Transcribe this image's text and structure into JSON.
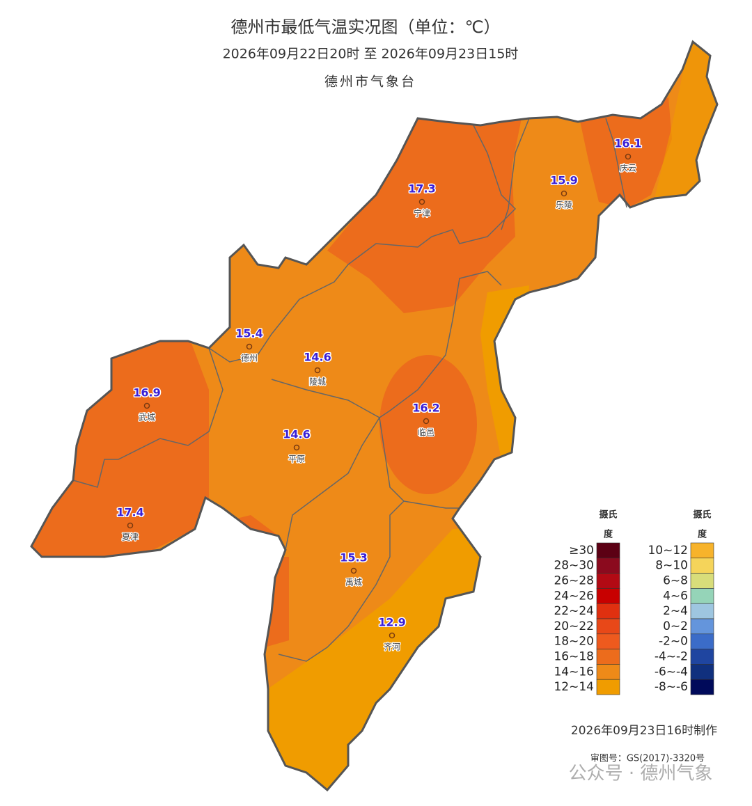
{
  "header": {
    "title": "德州市最低气温实况图（单位：℃）",
    "period": "2026年09月22日20时  至  2026年09月23日15时",
    "issuer": "德州市气象台"
  },
  "stations": [
    {
      "name": "庆云",
      "value": "16.1"
    },
    {
      "name": "宁津",
      "value": "17.3"
    },
    {
      "name": "乐陵",
      "value": "15.9"
    },
    {
      "name": "德州",
      "value": "15.4"
    },
    {
      "name": "陵城",
      "value": "14.6"
    },
    {
      "name": "武城",
      "value": "16.9"
    },
    {
      "name": "临邑",
      "value": "16.2"
    },
    {
      "name": "平原",
      "value": "14.6"
    },
    {
      "name": "夏津",
      "value": "17.4"
    },
    {
      "name": "禹城",
      "value": "15.3"
    },
    {
      "name": "齐河",
      "value": "12.9"
    }
  ],
  "legend": {
    "columns": [
      {
        "header": [
          "摄氏",
          "度"
        ],
        "items": [
          {
            "label": "≥30",
            "color": "#5c0014"
          },
          {
            "label": "28~30",
            "color": "#8b0a1e"
          },
          {
            "label": "26~28",
            "color": "#b20a14"
          },
          {
            "label": "24~26",
            "color": "#c80000"
          },
          {
            "label": "22~24",
            "color": "#e03010"
          },
          {
            "label": "20~22",
            "color": "#e84818"
          },
          {
            "label": "18~20",
            "color": "#ee5a1e"
          },
          {
            "label": "16~18",
            "color": "#ec6c1c"
          },
          {
            "label": "14~16",
            "color": "#ee8a18"
          },
          {
            "label": "12~14",
            "color": "#f09c00"
          }
        ]
      },
      {
        "header": [
          "摄氏",
          "度"
        ],
        "items": [
          {
            "label": "10~12",
            "color": "#f7b32b"
          },
          {
            "label": "8~10",
            "color": "#f5d45a"
          },
          {
            "label": "6~8",
            "color": "#d8dd7a"
          },
          {
            "label": "4~6",
            "color": "#95d4b8"
          },
          {
            "label": "2~4",
            "color": "#9ec6e0"
          },
          {
            "label": "0~2",
            "color": "#6495dc"
          },
          {
            "label": "-2~0",
            "color": "#3b6cc8"
          },
          {
            "label": "-4~-2",
            "color": "#1f45a0"
          },
          {
            "label": "-6~-4",
            "color": "#10307e"
          },
          {
            "label": "-8~-6",
            "color": "#000a5a"
          }
        ]
      }
    ]
  },
  "footer": {
    "made": "2026年09月23日16时制作",
    "approval": "审图号：GS(2017)-3320号",
    "watermark": "公众号 · 德州气象"
  }
}
